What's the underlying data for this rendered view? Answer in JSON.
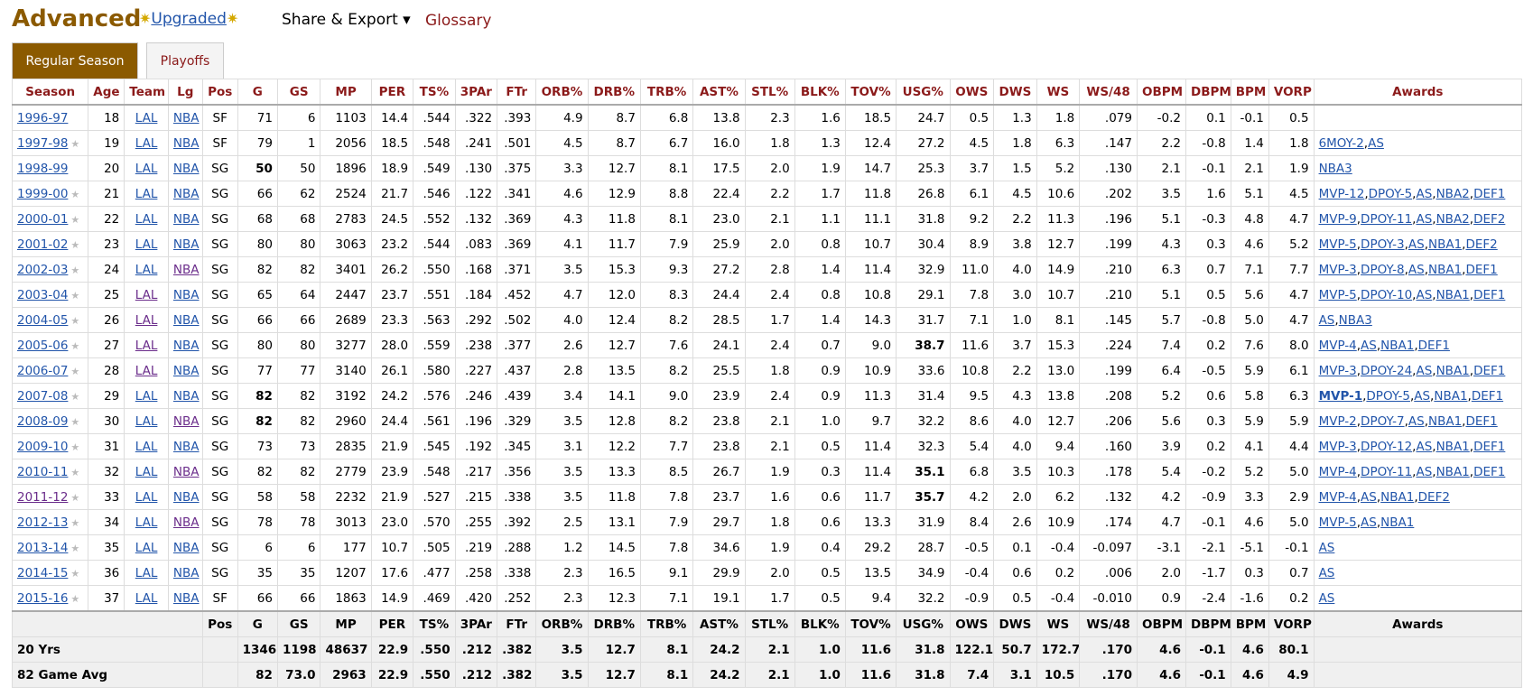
{
  "header": {
    "title": "Advanced",
    "upgraded": "Upgraded",
    "share": "Share & Export ▾",
    "glossary": "Glossary"
  },
  "tabs": [
    "Regular Season",
    "Playoffs"
  ],
  "columns": [
    "Season",
    "Age",
    "Team",
    "Lg",
    "Pos",
    "G",
    "GS",
    "MP",
    "PER",
    "TS%",
    "3PAr",
    "FTr",
    "ORB%",
    "DRB%",
    "TRB%",
    "AST%",
    "STL%",
    "BLK%",
    "TOV%",
    "USG%",
    "OWS",
    "DWS",
    "WS",
    "WS/48",
    "OBPM",
    "DBPM",
    "BPM",
    "VORP",
    "Awards"
  ],
  "rows": [
    {
      "season": "1996-97",
      "age": "18",
      "team": "LAL",
      "lg": "NBA",
      "pos": "SF",
      "g": "71",
      "gs": "6",
      "mp": "1103",
      "per": "14.4",
      "ts": ".544",
      "par": ".322",
      "ftr": ".393",
      "orb": "4.9",
      "drb": "8.7",
      "trb": "6.8",
      "ast": "13.8",
      "stl": "2.3",
      "blk": "1.6",
      "tov": "18.5",
      "usg": "24.7",
      "ows": "0.5",
      "dws": "1.3",
      "ws": "1.8",
      "ws48": ".079",
      "obpm": "-0.2",
      "dbpm": "0.1",
      "bpm": "-0.1",
      "vorp": "0.5",
      "awards": [],
      "star": false
    },
    {
      "season": "1997-98",
      "age": "19",
      "team": "LAL",
      "lg": "NBA",
      "pos": "SF",
      "g": "79",
      "gs": "1",
      "mp": "2056",
      "per": "18.5",
      "ts": ".548",
      "par": ".241",
      "ftr": ".501",
      "orb": "4.5",
      "drb": "8.7",
      "trb": "6.7",
      "ast": "16.0",
      "stl": "1.8",
      "blk": "1.3",
      "tov": "12.4",
      "usg": "27.2",
      "ows": "4.5",
      "dws": "1.8",
      "ws": "6.3",
      "ws48": ".147",
      "obpm": "2.2",
      "dbpm": "-0.8",
      "bpm": "1.4",
      "vorp": "1.8",
      "awards": [
        "6MOY-2",
        "AS"
      ],
      "star": true
    },
    {
      "season": "1998-99",
      "age": "20",
      "team": "LAL",
      "lg": "NBA",
      "pos": "SG",
      "g": "50",
      "gs": "50",
      "mp": "1896",
      "per": "18.9",
      "ts": ".549",
      "par": ".130",
      "ftr": ".375",
      "orb": "3.3",
      "drb": "12.7",
      "trb": "8.1",
      "ast": "17.5",
      "stl": "2.0",
      "blk": "1.9",
      "tov": "14.7",
      "usg": "25.3",
      "ows": "3.7",
      "dws": "1.5",
      "ws": "5.2",
      "ws48": ".130",
      "obpm": "2.1",
      "dbpm": "-0.1",
      "bpm": "2.1",
      "vorp": "1.9",
      "awards": [
        "NBA3"
      ],
      "star": false,
      "bold_g": true
    },
    {
      "season": "1999-00",
      "age": "21",
      "team": "LAL",
      "lg": "NBA",
      "pos": "SG",
      "g": "66",
      "gs": "62",
      "mp": "2524",
      "per": "21.7",
      "ts": ".546",
      "par": ".122",
      "ftr": ".341",
      "orb": "4.6",
      "drb": "12.9",
      "trb": "8.8",
      "ast": "22.4",
      "stl": "2.2",
      "blk": "1.7",
      "tov": "11.8",
      "usg": "26.8",
      "ows": "6.1",
      "dws": "4.5",
      "ws": "10.6",
      "ws48": ".202",
      "obpm": "3.5",
      "dbpm": "1.6",
      "bpm": "5.1",
      "vorp": "4.5",
      "awards": [
        "MVP-12",
        "DPOY-5",
        "AS",
        "NBA2",
        "DEF1"
      ],
      "star": true
    },
    {
      "season": "2000-01",
      "age": "22",
      "team": "LAL",
      "lg": "NBA",
      "pos": "SG",
      "g": "68",
      "gs": "68",
      "mp": "2783",
      "per": "24.5",
      "ts": ".552",
      "par": ".132",
      "ftr": ".369",
      "orb": "4.3",
      "drb": "11.8",
      "trb": "8.1",
      "ast": "23.0",
      "stl": "2.1",
      "blk": "1.1",
      "tov": "11.1",
      "usg": "31.8",
      "ows": "9.2",
      "dws": "2.2",
      "ws": "11.3",
      "ws48": ".196",
      "obpm": "5.1",
      "dbpm": "-0.3",
      "bpm": "4.8",
      "vorp": "4.7",
      "awards": [
        "MVP-9",
        "DPOY-11",
        "AS",
        "NBA2",
        "DEF2"
      ],
      "star": true
    },
    {
      "season": "2001-02",
      "age": "23",
      "team": "LAL",
      "lg": "NBA",
      "pos": "SG",
      "g": "80",
      "gs": "80",
      "mp": "3063",
      "per": "23.2",
      "ts": ".544",
      "par": ".083",
      "ftr": ".369",
      "orb": "4.1",
      "drb": "11.7",
      "trb": "7.9",
      "ast": "25.9",
      "stl": "2.0",
      "blk": "0.8",
      "tov": "10.7",
      "usg": "30.4",
      "ows": "8.9",
      "dws": "3.8",
      "ws": "12.7",
      "ws48": ".199",
      "obpm": "4.3",
      "dbpm": "0.3",
      "bpm": "4.6",
      "vorp": "5.2",
      "awards": [
        "MVP-5",
        "DPOY-3",
        "AS",
        "NBA1",
        "DEF2"
      ],
      "star": true
    },
    {
      "season": "2002-03",
      "age": "24",
      "team": "LAL",
      "lg": "NBA",
      "pos": "SG",
      "g": "82",
      "gs": "82",
      "mp": "3401",
      "per": "26.2",
      "ts": ".550",
      "par": ".168",
      "ftr": ".371",
      "orb": "3.5",
      "drb": "15.3",
      "trb": "9.3",
      "ast": "27.2",
      "stl": "2.8",
      "blk": "1.4",
      "tov": "11.4",
      "usg": "32.9",
      "ows": "11.0",
      "dws": "4.0",
      "ws": "14.9",
      "ws48": ".210",
      "obpm": "6.3",
      "dbpm": "0.7",
      "bpm": "7.1",
      "vorp": "7.7",
      "awards": [
        "MVP-3",
        "DPOY-8",
        "AS",
        "NBA1",
        "DEF1"
      ],
      "star": true,
      "visited_lg": true
    },
    {
      "season": "2003-04",
      "age": "25",
      "team": "LAL",
      "lg": "NBA",
      "pos": "SG",
      "g": "65",
      "gs": "64",
      "mp": "2447",
      "per": "23.7",
      "ts": ".551",
      "par": ".184",
      "ftr": ".452",
      "orb": "4.7",
      "drb": "12.0",
      "trb": "8.3",
      "ast": "24.4",
      "stl": "2.4",
      "blk": "0.8",
      "tov": "10.8",
      "usg": "29.1",
      "ows": "7.8",
      "dws": "3.0",
      "ws": "10.7",
      "ws48": ".210",
      "obpm": "5.1",
      "dbpm": "0.5",
      "bpm": "5.6",
      "vorp": "4.7",
      "awards": [
        "MVP-5",
        "DPOY-10",
        "AS",
        "NBA1",
        "DEF1"
      ],
      "star": true,
      "visited_team": true
    },
    {
      "season": "2004-05",
      "age": "26",
      "team": "LAL",
      "lg": "NBA",
      "pos": "SG",
      "g": "66",
      "gs": "66",
      "mp": "2689",
      "per": "23.3",
      "ts": ".563",
      "par": ".292",
      "ftr": ".502",
      "orb": "4.0",
      "drb": "12.4",
      "trb": "8.2",
      "ast": "28.5",
      "stl": "1.7",
      "blk": "1.4",
      "tov": "14.3",
      "usg": "31.7",
      "ows": "7.1",
      "dws": "1.0",
      "ws": "8.1",
      "ws48": ".145",
      "obpm": "5.7",
      "dbpm": "-0.8",
      "bpm": "5.0",
      "vorp": "4.7",
      "awards": [
        "AS",
        "NBA3"
      ],
      "star": true,
      "visited_team": true
    },
    {
      "season": "2005-06",
      "age": "27",
      "team": "LAL",
      "lg": "NBA",
      "pos": "SG",
      "g": "80",
      "gs": "80",
      "mp": "3277",
      "per": "28.0",
      "ts": ".559",
      "par": ".238",
      "ftr": ".377",
      "orb": "2.6",
      "drb": "12.7",
      "trb": "7.6",
      "ast": "24.1",
      "stl": "2.4",
      "blk": "0.7",
      "tov": "9.0",
      "usg": "38.7",
      "ows": "11.6",
      "dws": "3.7",
      "ws": "15.3",
      "ws48": ".224",
      "obpm": "7.4",
      "dbpm": "0.2",
      "bpm": "7.6",
      "vorp": "8.0",
      "awards": [
        "MVP-4",
        "AS",
        "NBA1",
        "DEF1"
      ],
      "star": true,
      "visited_team": true,
      "bold_usg": true
    },
    {
      "season": "2006-07",
      "age": "28",
      "team": "LAL",
      "lg": "NBA",
      "pos": "SG",
      "g": "77",
      "gs": "77",
      "mp": "3140",
      "per": "26.1",
      "ts": ".580",
      "par": ".227",
      "ftr": ".437",
      "orb": "2.8",
      "drb": "13.5",
      "trb": "8.2",
      "ast": "25.5",
      "stl": "1.8",
      "blk": "0.9",
      "tov": "10.9",
      "usg": "33.6",
      "ows": "10.8",
      "dws": "2.2",
      "ws": "13.0",
      "ws48": ".199",
      "obpm": "6.4",
      "dbpm": "-0.5",
      "bpm": "5.9",
      "vorp": "6.1",
      "awards": [
        "MVP-3",
        "DPOY-24",
        "AS",
        "NBA1",
        "DEF1"
      ],
      "star": true,
      "visited_team": true
    },
    {
      "season": "2007-08",
      "age": "29",
      "team": "LAL",
      "lg": "NBA",
      "pos": "SG",
      "g": "82",
      "gs": "82",
      "mp": "3192",
      "per": "24.2",
      "ts": ".576",
      "par": ".246",
      "ftr": ".439",
      "orb": "3.4",
      "drb": "14.1",
      "trb": "9.0",
      "ast": "23.9",
      "stl": "2.4",
      "blk": "0.9",
      "tov": "11.3",
      "usg": "31.4",
      "ows": "9.5",
      "dws": "4.3",
      "ws": "13.8",
      "ws48": ".208",
      "obpm": "5.2",
      "dbpm": "0.6",
      "bpm": "5.8",
      "vorp": "6.3",
      "awards": [
        "MVP-1",
        "DPOY-5",
        "AS",
        "NBA1",
        "DEF1"
      ],
      "star": true,
      "bold_g": true,
      "bold_first_award": true
    },
    {
      "season": "2008-09",
      "age": "30",
      "team": "LAL",
      "lg": "NBA",
      "pos": "SG",
      "g": "82",
      "gs": "82",
      "mp": "2960",
      "per": "24.4",
      "ts": ".561",
      "par": ".196",
      "ftr": ".329",
      "orb": "3.5",
      "drb": "12.8",
      "trb": "8.2",
      "ast": "23.8",
      "stl": "2.1",
      "blk": "1.0",
      "tov": "9.7",
      "usg": "32.2",
      "ows": "8.6",
      "dws": "4.0",
      "ws": "12.7",
      "ws48": ".206",
      "obpm": "5.6",
      "dbpm": "0.3",
      "bpm": "5.9",
      "vorp": "5.9",
      "awards": [
        "MVP-2",
        "DPOY-7",
        "AS",
        "NBA1",
        "DEF1"
      ],
      "star": true,
      "bold_g": true,
      "visited_lg": true
    },
    {
      "season": "2009-10",
      "age": "31",
      "team": "LAL",
      "lg": "NBA",
      "pos": "SG",
      "g": "73",
      "gs": "73",
      "mp": "2835",
      "per": "21.9",
      "ts": ".545",
      "par": ".192",
      "ftr": ".345",
      "orb": "3.1",
      "drb": "12.2",
      "trb": "7.7",
      "ast": "23.8",
      "stl": "2.1",
      "blk": "0.5",
      "tov": "11.4",
      "usg": "32.3",
      "ows": "5.4",
      "dws": "4.0",
      "ws": "9.4",
      "ws48": ".160",
      "obpm": "3.9",
      "dbpm": "0.2",
      "bpm": "4.1",
      "vorp": "4.4",
      "awards": [
        "MVP-3",
        "DPOY-12",
        "AS",
        "NBA1",
        "DEF1"
      ],
      "star": true
    },
    {
      "season": "2010-11",
      "age": "32",
      "team": "LAL",
      "lg": "NBA",
      "pos": "SG",
      "g": "82",
      "gs": "82",
      "mp": "2779",
      "per": "23.9",
      "ts": ".548",
      "par": ".217",
      "ftr": ".356",
      "orb": "3.5",
      "drb": "13.3",
      "trb": "8.5",
      "ast": "26.7",
      "stl": "1.9",
      "blk": "0.3",
      "tov": "11.4",
      "usg": "35.1",
      "ows": "6.8",
      "dws": "3.5",
      "ws": "10.3",
      "ws48": ".178",
      "obpm": "5.4",
      "dbpm": "-0.2",
      "bpm": "5.2",
      "vorp": "5.0",
      "awards": [
        "MVP-4",
        "DPOY-11",
        "AS",
        "NBA1",
        "DEF1"
      ],
      "star": true,
      "visited_lg": true,
      "bold_usg": true
    },
    {
      "season": "2011-12",
      "age": "33",
      "team": "LAL",
      "lg": "NBA",
      "pos": "SG",
      "g": "58",
      "gs": "58",
      "mp": "2232",
      "per": "21.9",
      "ts": ".527",
      "par": ".215",
      "ftr": ".338",
      "orb": "3.5",
      "drb": "11.8",
      "trb": "7.8",
      "ast": "23.7",
      "stl": "1.6",
      "blk": "0.6",
      "tov": "11.7",
      "usg": "35.7",
      "ows": "4.2",
      "dws": "2.0",
      "ws": "6.2",
      "ws48": ".132",
      "obpm": "4.2",
      "dbpm": "-0.9",
      "bpm": "3.3",
      "vorp": "2.9",
      "awards": [
        "MVP-4",
        "AS",
        "NBA1",
        "DEF2"
      ],
      "star": true,
      "visited_season": true,
      "bold_usg": true
    },
    {
      "season": "2012-13",
      "age": "34",
      "team": "LAL",
      "lg": "NBA",
      "pos": "SG",
      "g": "78",
      "gs": "78",
      "mp": "3013",
      "per": "23.0",
      "ts": ".570",
      "par": ".255",
      "ftr": ".392",
      "orb": "2.5",
      "drb": "13.1",
      "trb": "7.9",
      "ast": "29.7",
      "stl": "1.8",
      "blk": "0.6",
      "tov": "13.3",
      "usg": "31.9",
      "ows": "8.4",
      "dws": "2.6",
      "ws": "10.9",
      "ws48": ".174",
      "obpm": "4.7",
      "dbpm": "-0.1",
      "bpm": "4.6",
      "vorp": "5.0",
      "awards": [
        "MVP-5",
        "AS",
        "NBA1"
      ],
      "star": true,
      "visited_lg": true
    },
    {
      "season": "2013-14",
      "age": "35",
      "team": "LAL",
      "lg": "NBA",
      "pos": "SG",
      "g": "6",
      "gs": "6",
      "mp": "177",
      "per": "10.7",
      "ts": ".505",
      "par": ".219",
      "ftr": ".288",
      "orb": "1.2",
      "drb": "14.5",
      "trb": "7.8",
      "ast": "34.6",
      "stl": "1.9",
      "blk": "0.4",
      "tov": "29.2",
      "usg": "28.7",
      "ows": "-0.5",
      "dws": "0.1",
      "ws": "-0.4",
      "ws48": "-0.097",
      "obpm": "-3.1",
      "dbpm": "-2.1",
      "bpm": "-5.1",
      "vorp": "-0.1",
      "awards": [
        "AS"
      ],
      "star": true
    },
    {
      "season": "2014-15",
      "age": "36",
      "team": "LAL",
      "lg": "NBA",
      "pos": "SG",
      "g": "35",
      "gs": "35",
      "mp": "1207",
      "per": "17.6",
      "ts": ".477",
      "par": ".258",
      "ftr": ".338",
      "orb": "2.3",
      "drb": "16.5",
      "trb": "9.1",
      "ast": "29.9",
      "stl": "2.0",
      "blk": "0.5",
      "tov": "13.5",
      "usg": "34.9",
      "ows": "-0.4",
      "dws": "0.6",
      "ws": "0.2",
      "ws48": ".006",
      "obpm": "2.0",
      "dbpm": "-1.7",
      "bpm": "0.3",
      "vorp": "0.7",
      "awards": [
        "AS"
      ],
      "star": true
    },
    {
      "season": "2015-16",
      "age": "37",
      "team": "LAL",
      "lg": "NBA",
      "pos": "SF",
      "g": "66",
      "gs": "66",
      "mp": "1863",
      "per": "14.9",
      "ts": ".469",
      "par": ".420",
      "ftr": ".252",
      "orb": "2.3",
      "drb": "12.3",
      "trb": "7.1",
      "ast": "19.1",
      "stl": "1.7",
      "blk": "0.5",
      "tov": "9.4",
      "usg": "32.2",
      "ows": "-0.9",
      "dws": "0.5",
      "ws": "-0.4",
      "ws48": "-0.010",
      "obpm": "0.9",
      "dbpm": "-2.4",
      "bpm": "-1.6",
      "vorp": "0.2",
      "awards": [
        "AS"
      ],
      "star": true
    }
  ],
  "footer_header": [
    "Pos",
    "G",
    "GS",
    "MP",
    "PER",
    "TS%",
    "3PAr",
    "FTr",
    "ORB%",
    "DRB%",
    "TRB%",
    "AST%",
    "STL%",
    "BLK%",
    "TOV%",
    "USG%",
    "OWS",
    "DWS",
    "WS",
    "WS/48",
    "OBPM",
    "DBPM",
    "BPM",
    "VORP",
    "Awards"
  ],
  "totals": [
    {
      "label": "20 Yrs",
      "g": "1346",
      "gs": "1198",
      "mp": "48637",
      "per": "22.9",
      "ts": ".550",
      "par": ".212",
      "ftr": ".382",
      "orb": "3.5",
      "drb": "12.7",
      "trb": "8.1",
      "ast": "24.2",
      "stl": "2.1",
      "blk": "1.0",
      "tov": "11.6",
      "usg": "31.8",
      "ows": "122.1",
      "dws": "50.7",
      "ws": "172.7",
      "ws48": ".170",
      "obpm": "4.6",
      "dbpm": "-0.1",
      "bpm": "4.6",
      "vorp": "80.1"
    },
    {
      "label": "82 Game Avg",
      "g": "82",
      "gs": "73.0",
      "mp": "2963",
      "per": "22.9",
      "ts": ".550",
      "par": ".212",
      "ftr": ".382",
      "orb": "3.5",
      "drb": "12.7",
      "trb": "8.1",
      "ast": "24.2",
      "stl": "2.1",
      "blk": "1.0",
      "tov": "11.6",
      "usg": "31.8",
      "ows": "7.4",
      "dws": "3.1",
      "ws": "10.5",
      "ws48": ".170",
      "obpm": "4.6",
      "dbpm": "-0.1",
      "bpm": "4.6",
      "vorp": "4.9"
    }
  ]
}
